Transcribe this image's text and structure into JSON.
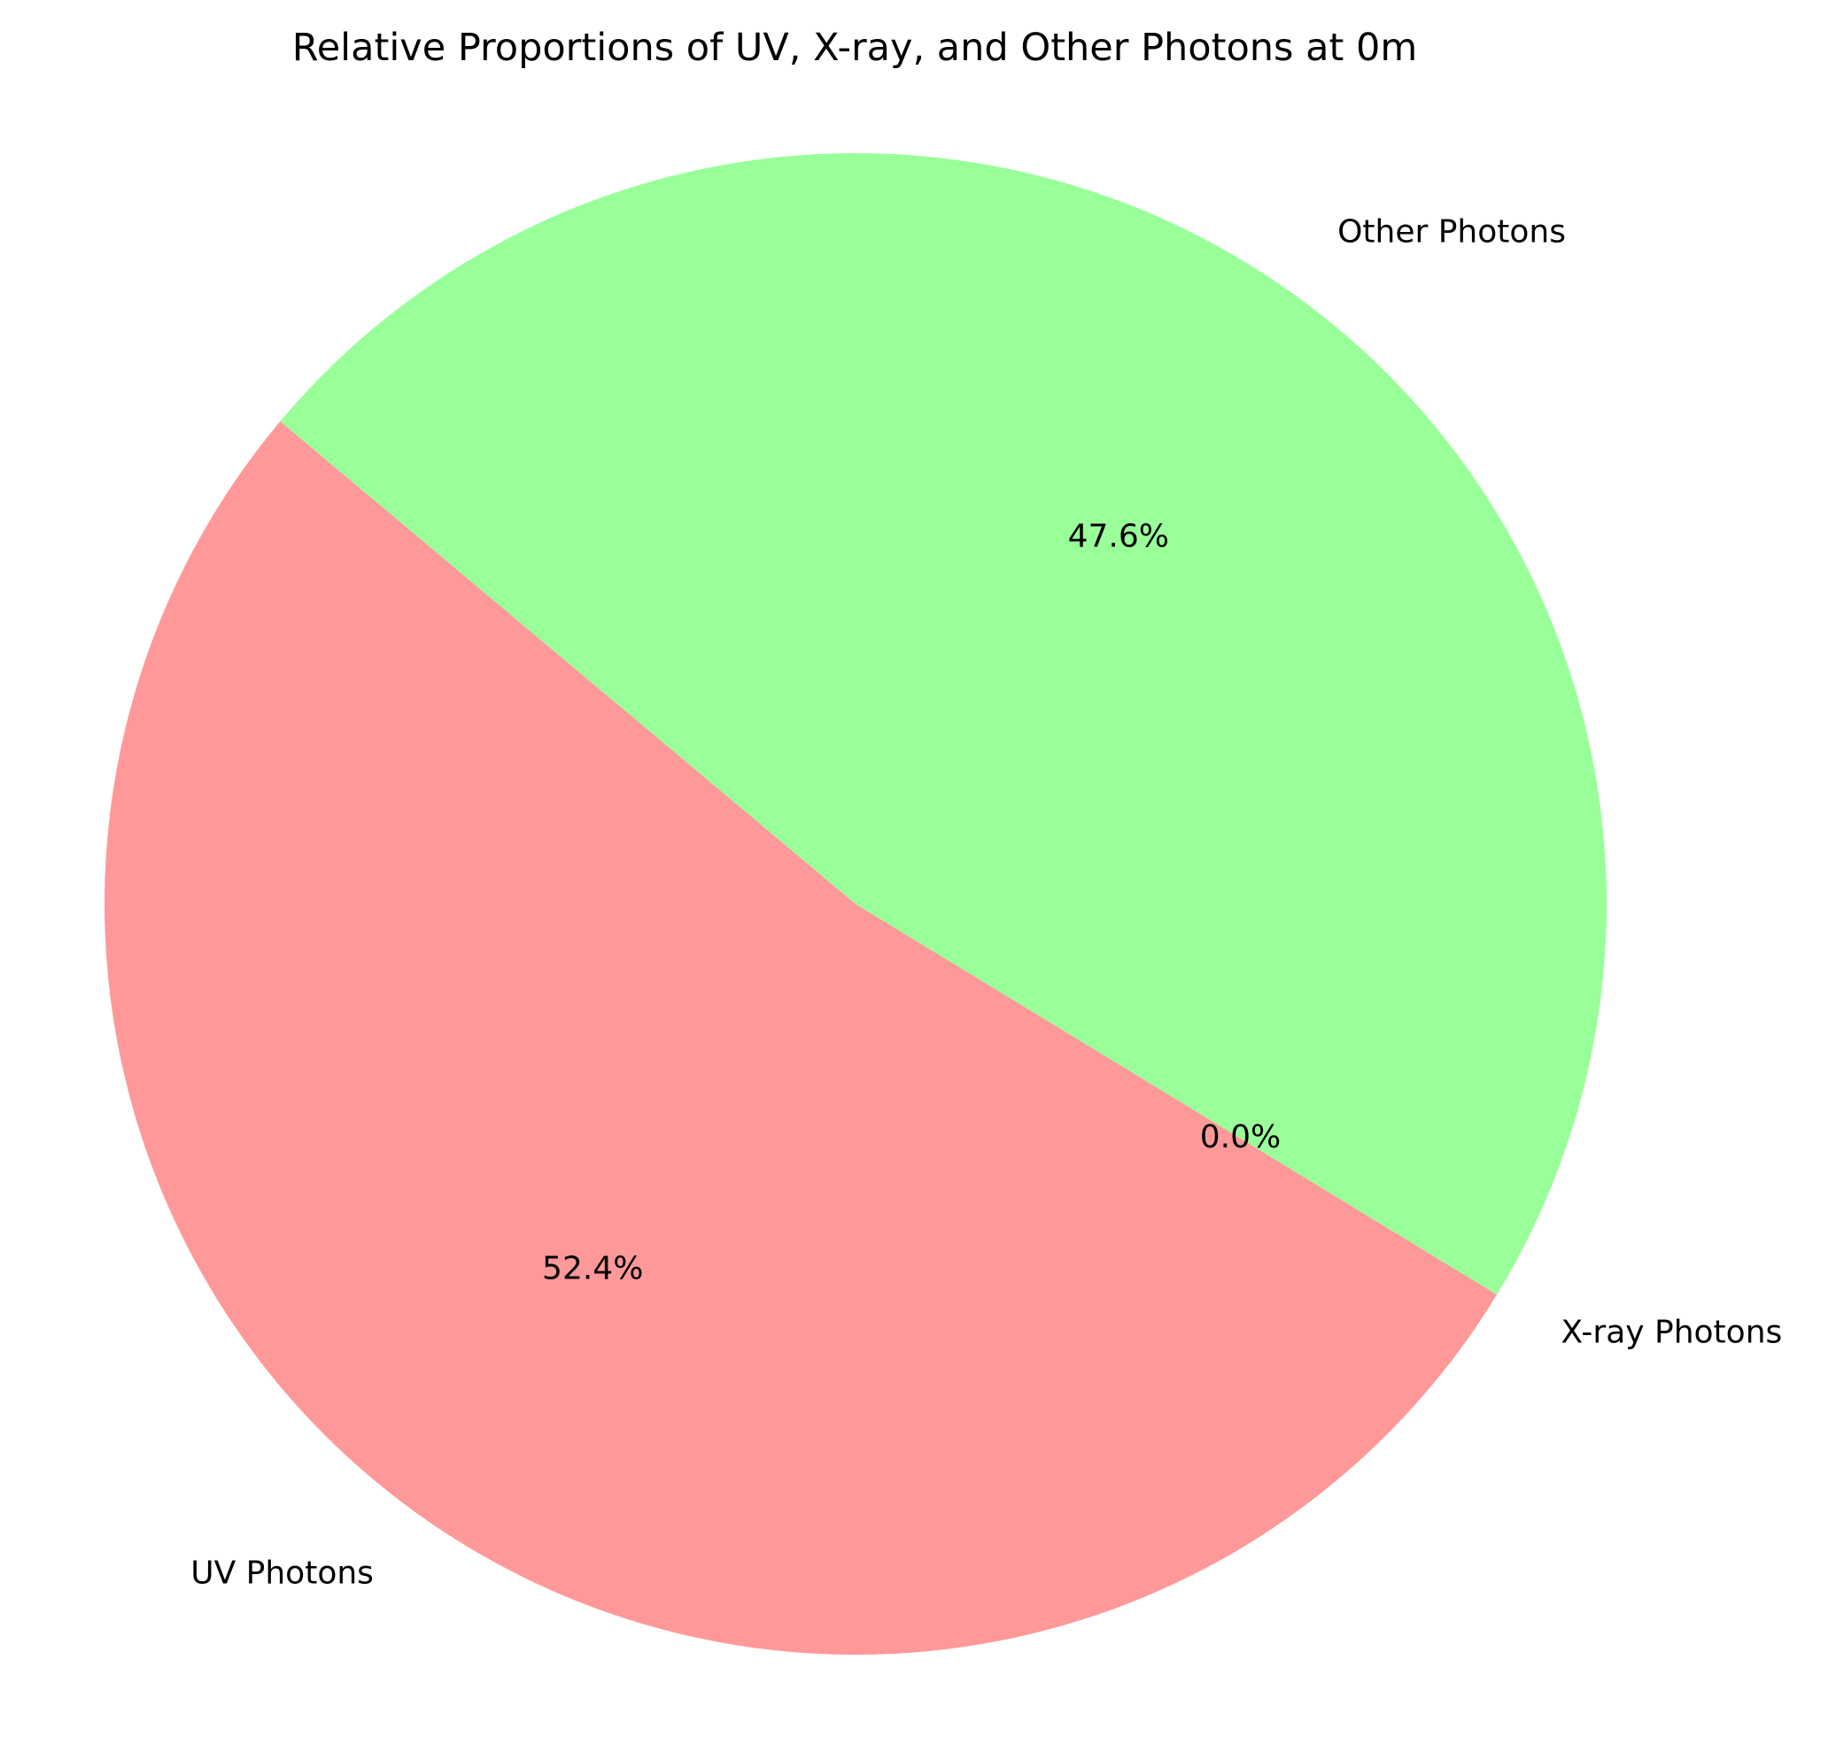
{
  "chart_data": {
    "type": "pie",
    "title": "Relative Proportions of UV, X-ray, and Other Photons at 0m",
    "slices": [
      {
        "label": "UV Photons",
        "value": 52.4,
        "pct_label": "52.4%",
        "color": "#ff9999"
      },
      {
        "label": "X-ray Photons",
        "value": 0.0,
        "pct_label": "0.0%",
        "color": "#66b3ff"
      },
      {
        "label": "Other Photons",
        "value": 47.6,
        "pct_label": "47.6%",
        "color": "#99ff99"
      }
    ],
    "start_angle_deg": 140,
    "legend": "none"
  }
}
